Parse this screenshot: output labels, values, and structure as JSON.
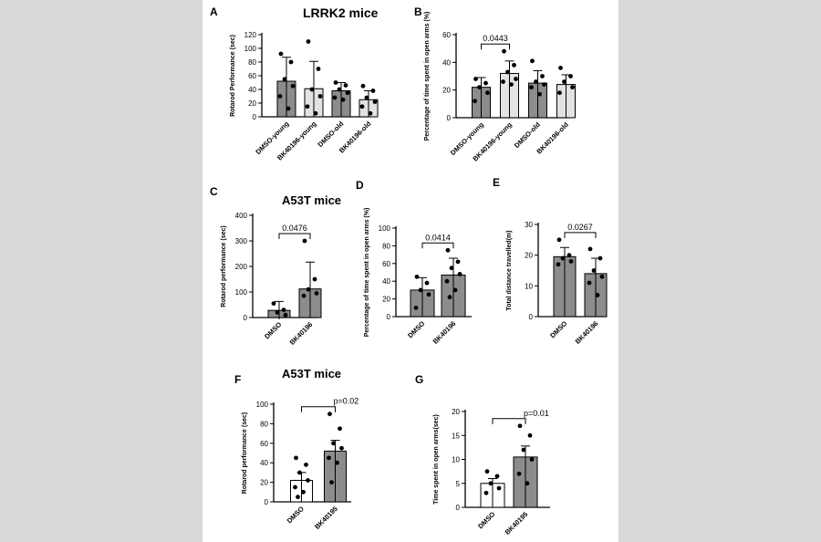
{
  "headings": {
    "h1": "LRRK2 mice",
    "h2": "A53T mice",
    "h3": "A53T mice"
  },
  "colors": {
    "dark_bar": "#8c8c8c",
    "light_bar": "#e3e3e3",
    "white_bar": "#ffffff",
    "dot": "#000000"
  },
  "chart_data": [
    {
      "id": "A",
      "panel_label": "A",
      "type": "bar",
      "ylabel": "Rotarod Performance (sec)",
      "yticks": [
        0,
        20,
        40,
        60,
        80,
        100,
        120
      ],
      "ylim": [
        0,
        120
      ],
      "categories": [
        "DMSO-young",
        "BK40196-young",
        "DMSO-old",
        "BK40196-old"
      ],
      "values": [
        52,
        41,
        38,
        25
      ],
      "error": [
        35,
        40,
        12,
        13
      ],
      "points": [
        [
          92,
          80,
          55,
          45,
          30,
          12
        ],
        [
          110,
          70,
          40,
          30,
          15,
          5
        ],
        [
          50,
          46,
          40,
          35,
          28,
          25
        ],
        [
          45,
          38,
          28,
          22,
          15,
          5
        ]
      ],
      "bar_fills": [
        "#8c8c8c",
        "#e3e3e3",
        "#8c8c8c",
        "#e3e3e3"
      ],
      "significance": []
    },
    {
      "id": "B",
      "panel_label": "B",
      "type": "bar",
      "ylabel": "Percentage of time spent in open arms (%)",
      "yticks": [
        0,
        20,
        40,
        60
      ],
      "ylim": [
        0,
        60
      ],
      "categories": [
        "DMSO-young",
        "BK40196-young",
        "DMSO-old",
        "BK40196-old"
      ],
      "values": [
        22,
        32,
        25,
        24
      ],
      "error": [
        7,
        9,
        9,
        7
      ],
      "points": [
        [
          28,
          25,
          22,
          18,
          12
        ],
        [
          48,
          38,
          33,
          28,
          26,
          24
        ],
        [
          41,
          30,
          26,
          24,
          22,
          17
        ],
        [
          36,
          30,
          26,
          22,
          18
        ]
      ],
      "bar_fills": [
        "#8c8c8c",
        "#e3e3e3",
        "#8c8c8c",
        "#e3e3e3"
      ],
      "significance": [
        {
          "from": 0,
          "to": 1,
          "label": "0.0443"
        }
      ]
    },
    {
      "id": "C",
      "panel_label": "C",
      "type": "bar",
      "ylabel": "Rotarod performance (sec)",
      "yticks": [
        0,
        100,
        200,
        300,
        400
      ],
      "ylim": [
        0,
        400
      ],
      "categories": [
        "DMSO",
        "BK40196"
      ],
      "values": [
        28,
        112
      ],
      "error": [
        35,
        105
      ],
      "points": [
        [
          55,
          30,
          20,
          10
        ],
        [
          300,
          150,
          110,
          95,
          85
        ]
      ],
      "bar_fills": [
        "#8c8c8c",
        "#8c8c8c"
      ],
      "significance": [
        {
          "from": 0,
          "to": 1,
          "label": "0.0476"
        }
      ]
    },
    {
      "id": "D",
      "panel_label": "D",
      "type": "bar",
      "ylabel": "Percentage of time spent in open arms (%)",
      "yticks": [
        0,
        20,
        40,
        60,
        80,
        100
      ],
      "ylim": [
        0,
        100
      ],
      "categories": [
        "DMSO",
        "BK40196"
      ],
      "values": [
        30,
        47
      ],
      "error": [
        14,
        19
      ],
      "points": [
        [
          45,
          38,
          30,
          25,
          10
        ],
        [
          75,
          62,
          55,
          48,
          40,
          30,
          22
        ]
      ],
      "bar_fills": [
        "#8c8c8c",
        "#8c8c8c"
      ],
      "significance": [
        {
          "from": 0,
          "to": 1,
          "label": "0.0414"
        }
      ]
    },
    {
      "id": "E",
      "panel_label": "E",
      "type": "bar",
      "ylabel": "Total distance travelled(m)",
      "yticks": [
        0,
        10,
        20,
        30
      ],
      "ylim": [
        0,
        30
      ],
      "categories": [
        "DMSO",
        "BK40196"
      ],
      "values": [
        19.5,
        14
      ],
      "error": [
        3,
        5
      ],
      "points": [
        [
          25,
          20,
          19,
          18,
          17
        ],
        [
          22,
          19,
          15,
          13,
          11,
          7
        ]
      ],
      "bar_fills": [
        "#8c8c8c",
        "#8c8c8c"
      ],
      "significance": [
        {
          "from": 0,
          "to": 1,
          "label": "0.0267"
        }
      ]
    },
    {
      "id": "F",
      "panel_label": "F",
      "type": "bar",
      "ylabel": "Rotarod performance (sec)",
      "yticks": [
        0,
        20,
        40,
        60,
        80,
        100
      ],
      "ylim": [
        0,
        100
      ],
      "categories": [
        "DMSO",
        "BK40195"
      ],
      "values": [
        22,
        52
      ],
      "error": [
        8,
        11
      ],
      "points": [
        [
          45,
          38,
          30,
          22,
          15,
          10,
          5
        ],
        [
          90,
          75,
          60,
          55,
          45,
          40,
          20
        ]
      ],
      "bar_fills": [
        "#ffffff",
        "#8c8c8c"
      ],
      "significance": [
        {
          "from": 0,
          "to": 1,
          "label": "p=0.02"
        }
      ]
    },
    {
      "id": "G",
      "panel_label": "G",
      "type": "bar",
      "ylabel": "Time spent in open arms(sec)",
      "yticks": [
        0,
        5,
        10,
        15,
        20
      ],
      "ylim": [
        0,
        20
      ],
      "categories": [
        "DMSO",
        "BK40195"
      ],
      "values": [
        5,
        10.5
      ],
      "error": [
        1,
        2.3
      ],
      "points": [
        [
          7.5,
          6.5,
          5,
          4,
          3
        ],
        [
          17,
          15,
          12,
          10,
          7,
          5
        ]
      ],
      "bar_fills": [
        "#ffffff",
        "#8c8c8c"
      ],
      "significance": [
        {
          "from": 0,
          "to": 1,
          "label": "p=0.01"
        }
      ]
    }
  ]
}
